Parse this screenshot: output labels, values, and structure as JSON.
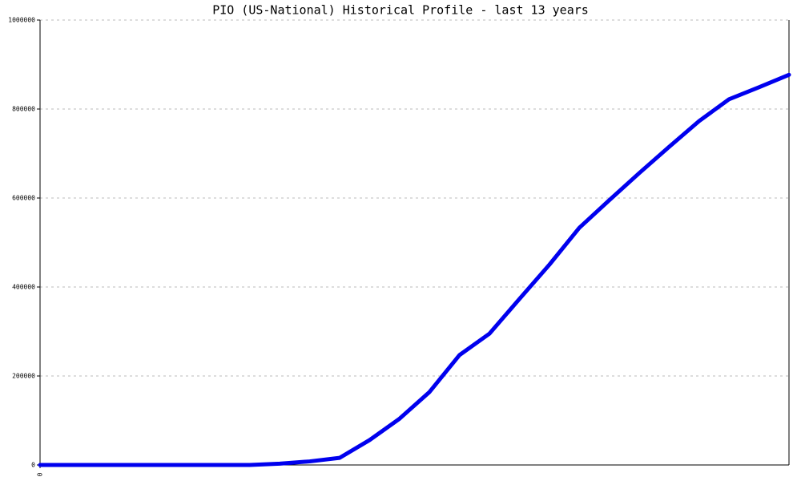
{
  "chart_data": {
    "type": "line",
    "title": "PIO (US-National) Historical Profile - last 13 years",
    "x": [
      0,
      1,
      2,
      3,
      4,
      5,
      6,
      7,
      8,
      9,
      10,
      11,
      12,
      13,
      14,
      15,
      16,
      17,
      18,
      19,
      20,
      21,
      22,
      23,
      24,
      25
    ],
    "values": [
      0,
      0,
      0,
      0,
      0,
      0,
      0,
      0,
      3000,
      8000,
      16000,
      56000,
      104000,
      164000,
      247000,
      295000,
      373000,
      450000,
      533000,
      595000,
      656000,
      715000,
      773000,
      822000,
      849000,
      877000
    ],
    "color": "#0000ee",
    "xlim": [
      0,
      25
    ],
    "xticks": [
      0
    ],
    "ylim": [
      0,
      1000000
    ],
    "yticks": [
      0,
      200000,
      400000,
      600000,
      800000,
      1000000
    ],
    "grid": true
  }
}
